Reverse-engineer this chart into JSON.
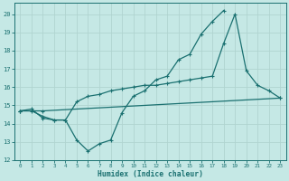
{
  "background_color": "#c5e8e5",
  "grid_color": "#b0d4d0",
  "line_color": "#1a7070",
  "xlabel": "Humidex (Indice chaleur)",
  "xlim": [
    -0.5,
    23.5
  ],
  "ylim": [
    12,
    20.6
  ],
  "yticks": [
    12,
    13,
    14,
    15,
    16,
    17,
    18,
    19,
    20
  ],
  "xticks": [
    0,
    1,
    2,
    3,
    4,
    5,
    6,
    7,
    8,
    9,
    10,
    11,
    12,
    13,
    14,
    15,
    16,
    17,
    18,
    19,
    20,
    21,
    22,
    23
  ],
  "line1_x": [
    0,
    1,
    2,
    3,
    4,
    5,
    6,
    7,
    8,
    9,
    10,
    11,
    12,
    13,
    14,
    15,
    16,
    17,
    18
  ],
  "line1_y": [
    14.7,
    14.8,
    14.3,
    14.2,
    14.2,
    13.1,
    12.5,
    12.9,
    13.1,
    14.6,
    15.5,
    15.8,
    16.4,
    16.6,
    17.5,
    17.8,
    18.9,
    19.6,
    20.2
  ],
  "line2_x": [
    0,
    2,
    23
  ],
  "line2_y": [
    14.7,
    14.7,
    15.4
  ],
  "line3_x": [
    0,
    1,
    2,
    3,
    4,
    5,
    6,
    7,
    8,
    9,
    10,
    11,
    12,
    13,
    14,
    15,
    16,
    17,
    18,
    19,
    20,
    21,
    22,
    23
  ],
  "line3_y": [
    14.7,
    14.7,
    14.4,
    14.2,
    14.2,
    15.2,
    15.5,
    15.6,
    15.8,
    15.9,
    16.0,
    16.1,
    16.1,
    16.2,
    16.3,
    16.4,
    16.5,
    16.6,
    18.4,
    20.0,
    16.9,
    16.1,
    15.8,
    15.4
  ]
}
